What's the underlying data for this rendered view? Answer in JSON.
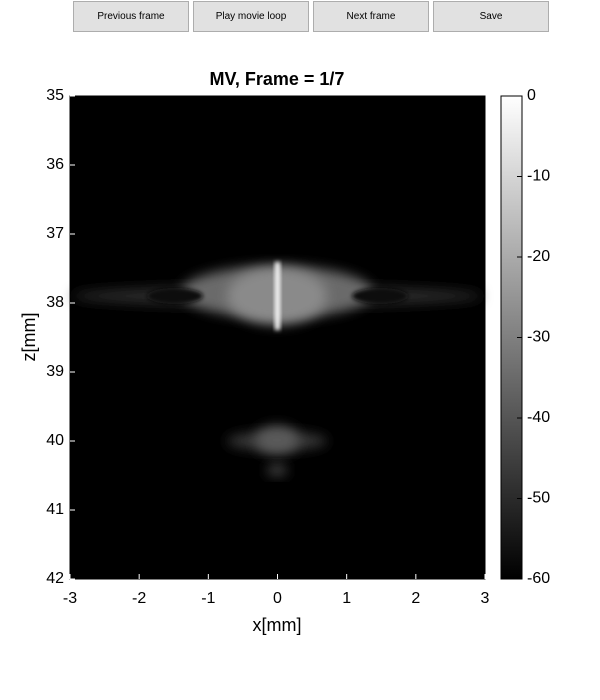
{
  "toolbar": {
    "buttons": [
      "Previous frame",
      "Play movie loop",
      "Next frame",
      "Save"
    ]
  },
  "chart_data": {
    "type": "image",
    "title": "MV, Frame = 1/7",
    "xlabel": "x[mm]",
    "ylabel": "z[mm]",
    "xlim": [
      -3,
      3
    ],
    "ylim": [
      35,
      42
    ],
    "y_reversed": true,
    "xticks": [
      -3,
      -2,
      -1,
      0,
      1,
      2,
      3
    ],
    "yticks": [
      35,
      36,
      37,
      38,
      39,
      40,
      41,
      42
    ],
    "colorbar": {
      "lim": [
        -60,
        0
      ],
      "ticks": [
        0,
        -10,
        -20,
        -30,
        -40,
        -50,
        -60
      ]
    }
  }
}
